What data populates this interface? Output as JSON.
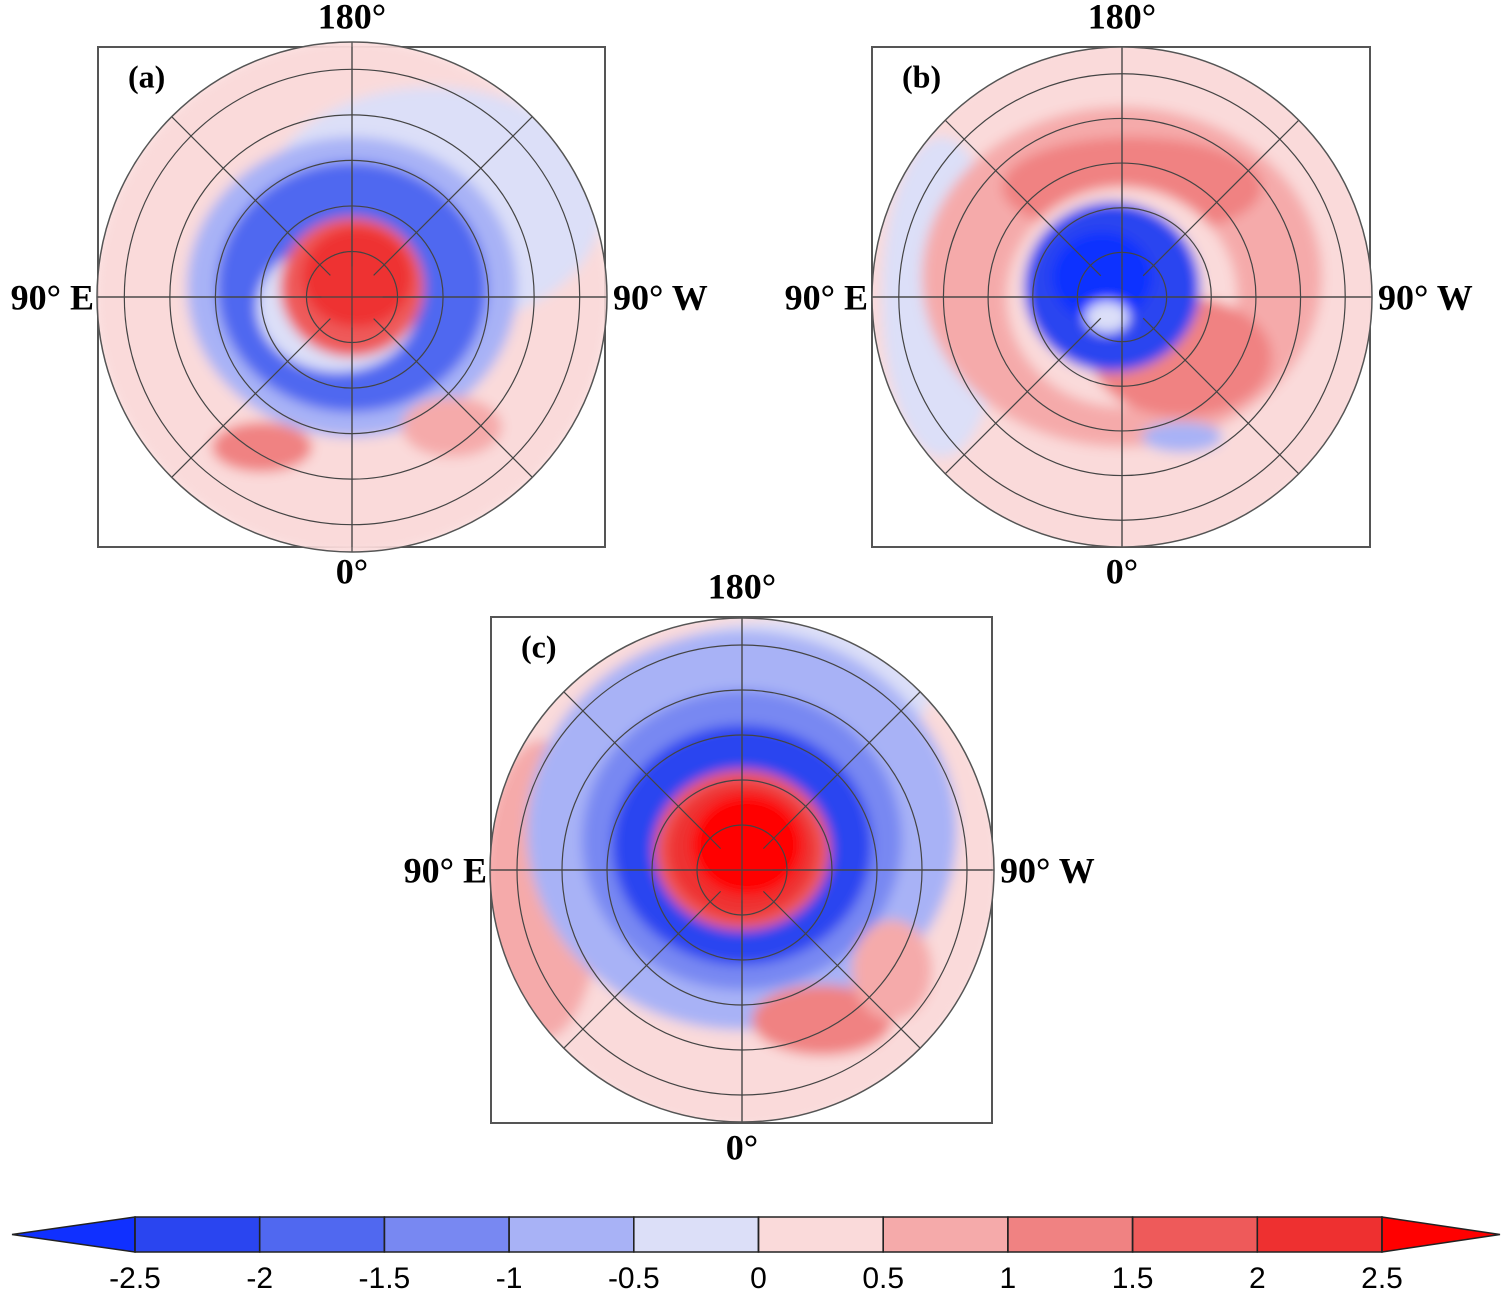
{
  "panels": [
    {
      "label": "(a)",
      "top": "180°",
      "left": "90° E",
      "right": "90° W",
      "bottom": "0°"
    },
    {
      "label": "(b)",
      "top": "180°",
      "left": "90° E",
      "right": "90° W",
      "bottom": "0°"
    },
    {
      "label": "(c)",
      "top": "180°",
      "left": "90° E",
      "right": "90° W",
      "bottom": "0°"
    }
  ],
  "colorbar": {
    "ticks": [
      -2.5,
      -2,
      -1.5,
      -1,
      -0.5,
      0,
      0.5,
      1,
      1.5,
      2,
      2.5
    ],
    "colors": [
      "#1030ff",
      "#2a45f0",
      "#5068f0",
      "#7888f2",
      "#a8b2f6",
      "#dcdff8",
      "#fadada",
      "#f5aaaa",
      "#f08282",
      "#ee5a5a",
      "#ee3030",
      "#ff0000"
    ]
  }
}
